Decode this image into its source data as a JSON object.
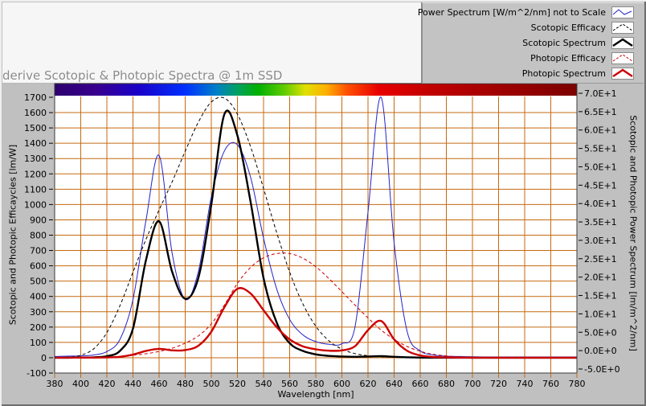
{
  "title": "derive Scotopic & Photopic Spectra @ 1m SSD",
  "legend": {
    "items": [
      {
        "label": "Power Spectrum [W/m^2/nm] not to Scale",
        "color": "#2222cc",
        "width": 1,
        "dash": "",
        "glyph": "zigzag"
      },
      {
        "label": "Scotopic Efficacy",
        "color": "#000000",
        "width": 1,
        "dash": "3 2",
        "glyph": "caret"
      },
      {
        "label": "Scotopic Spectrum",
        "color": "#000000",
        "width": 2.4,
        "dash": "",
        "glyph": "caret"
      },
      {
        "label": "Photopic Efficacy",
        "color": "#cc0000",
        "width": 1,
        "dash": "3 2",
        "glyph": "caret"
      },
      {
        "label": "Photopic Spectrum",
        "color": "#cc0000",
        "width": 2.4,
        "dash": "",
        "glyph": "caret"
      }
    ]
  },
  "axes": {
    "x": {
      "label": "Wavelength [nm]",
      "min": 380,
      "max": 780,
      "ticks": [
        380,
        400,
        420,
        440,
        460,
        480,
        500,
        520,
        540,
        560,
        580,
        600,
        620,
        640,
        660,
        680,
        700,
        720,
        740,
        760,
        780
      ]
    },
    "y_left": {
      "label": "Scotopic and Photopic Efficaycies [lm/W]",
      "min": -100,
      "max": 1700,
      "ticks": [
        1700,
        1600,
        1500,
        1400,
        1300,
        1200,
        1100,
        1000,
        900,
        800,
        700,
        600,
        500,
        400,
        300,
        200,
        100,
        0,
        -100
      ]
    },
    "y_right": {
      "label": "Scotopic and Photopic Power Spectrum [lm/m^2/nm]",
      "min": -5,
      "max": 70,
      "tick_labels": [
        "7.0E+1",
        "6.5E+1",
        "6.0E+1",
        "5.5E+1",
        "5.0E+1",
        "4.5E+1",
        "4.0E+1",
        "3.5E+1",
        "3.0E+1",
        "2.5E+1",
        "2.0E+1",
        "1.5E+1",
        "1.0E+1",
        "5.0E+0",
        "0.0E+0",
        "-5.0E+0"
      ]
    }
  },
  "colors": {
    "window_bg": "#c0c0c0",
    "panel_bg": "#f6f6f6",
    "plot_bg": "#ffffff",
    "grid": "#c46a10",
    "plot_border": "#3a3a3a",
    "tick": "#000000",
    "blue_series": "#2222cc",
    "black_series": "#000000",
    "red_series": "#cc0000"
  },
  "chart_data": {
    "type": "line",
    "title": "derive Scotopic & Photopic Spectra @ 1m SSD",
    "xlabel": "Wavelength [nm]",
    "ylabel_left": "Scotopic and Photopic Efficaycies [lm/W]",
    "ylabel_right": "Scotopic and Photopic Power Spectrum [lm/m^2/nm]",
    "xlim": [
      380,
      780
    ],
    "ylim_left": [
      -100,
      1700
    ],
    "ylim_right": [
      -5,
      70
    ],
    "grid": true,
    "legend_position": "outside-top-right",
    "note": "All series values are given in left-axis units (lm/W scale) as plotted; right axis maps linearly -5..70 over the same plot height. Spectrum colorbar strip drawn across the top of the plot area.",
    "x": [
      380,
      390,
      400,
      410,
      420,
      430,
      440,
      450,
      460,
      470,
      480,
      490,
      500,
      510,
      520,
      530,
      540,
      550,
      560,
      570,
      580,
      590,
      600,
      610,
      620,
      630,
      640,
      650,
      660,
      670,
      680,
      690,
      700,
      710,
      720,
      730,
      740,
      750,
      760,
      770,
      780
    ],
    "series": [
      {
        "name": "Power Spectrum [W/m^2/nm] not to Scale",
        "color": "#2222cc",
        "width": 1,
        "dash": "",
        "values": [
          8,
          10,
          12,
          18,
          40,
          120,
          380,
          900,
          1320,
          680,
          380,
          560,
          1050,
          1350,
          1390,
          1180,
          780,
          450,
          250,
          150,
          105,
          88,
          92,
          200,
          950,
          1700,
          750,
          170,
          45,
          18,
          10,
          8,
          6,
          5,
          5,
          5,
          5,
          5,
          5,
          5,
          5
        ]
      },
      {
        "name": "Scotopic Efficacy",
        "color": "#000000",
        "width": 1,
        "dash": "4 3",
        "values": [
          1,
          4,
          16,
          59,
          164,
          340,
          558,
          774,
          964,
          1149,
          1348,
          1537,
          1669,
          1695,
          1590,
          1379,
          1105,
          818,
          559,
          353,
          206,
          111,
          56,
          27,
          13,
          6,
          3,
          1,
          0,
          0,
          0,
          0,
          0,
          0,
          0,
          0,
          0,
          0,
          0,
          0,
          0
        ]
      },
      {
        "name": "Scotopic Spectrum",
        "color": "#000000",
        "width": 2.4,
        "dash": "",
        "values": [
          0,
          0,
          1,
          3,
          10,
          45,
          190,
          640,
          890,
          560,
          385,
          520,
          1000,
          1590,
          1450,
          1020,
          520,
          230,
          95,
          45,
          22,
          12,
          8,
          6,
          8,
          10,
          6,
          3,
          1,
          0,
          0,
          0,
          0,
          0,
          0,
          0,
          0,
          0,
          0,
          0,
          0
        ]
      },
      {
        "name": "Photopic Efficacy",
        "color": "#cc0000",
        "width": 1,
        "dash": "4 3",
        "values": [
          0,
          0,
          0,
          1,
          3,
          8,
          16,
          26,
          41,
          62,
          95,
          142,
          221,
          344,
          485,
          589,
          652,
          680,
          680,
          650,
          594,
          517,
          431,
          344,
          260,
          181,
          120,
          73,
          42,
          22,
          12,
          6,
          3,
          1,
          1,
          0,
          0,
          0,
          0,
          0,
          0
        ]
      },
      {
        "name": "Photopic Spectrum",
        "color": "#cc0000",
        "width": 2.4,
        "dash": "",
        "values": [
          0,
          0,
          1,
          1,
          2,
          6,
          20,
          45,
          58,
          48,
          50,
          78,
          170,
          330,
          450,
          420,
          310,
          200,
          120,
          75,
          55,
          46,
          48,
          75,
          180,
          240,
          120,
          45,
          15,
          5,
          2,
          1,
          0,
          0,
          0,
          0,
          0,
          0,
          0,
          0,
          0
        ]
      }
    ],
    "colorbar": {
      "stops": [
        {
          "pos": 0.0,
          "color": "#2d006e"
        },
        {
          "pos": 0.08,
          "color": "#38008e"
        },
        {
          "pos": 0.16,
          "color": "#1a00c8"
        },
        {
          "pos": 0.25,
          "color": "#0030ff"
        },
        {
          "pos": 0.31,
          "color": "#0080c8"
        },
        {
          "pos": 0.35,
          "color": "#00a060"
        },
        {
          "pos": 0.39,
          "color": "#00b000"
        },
        {
          "pos": 0.44,
          "color": "#60cc00"
        },
        {
          "pos": 0.48,
          "color": "#e0e000"
        },
        {
          "pos": 0.52,
          "color": "#ffb000"
        },
        {
          "pos": 0.56,
          "color": "#ff5000"
        },
        {
          "pos": 0.62,
          "color": "#e80000"
        },
        {
          "pos": 0.72,
          "color": "#c00000"
        },
        {
          "pos": 1.0,
          "color": "#7c0000"
        }
      ]
    }
  }
}
